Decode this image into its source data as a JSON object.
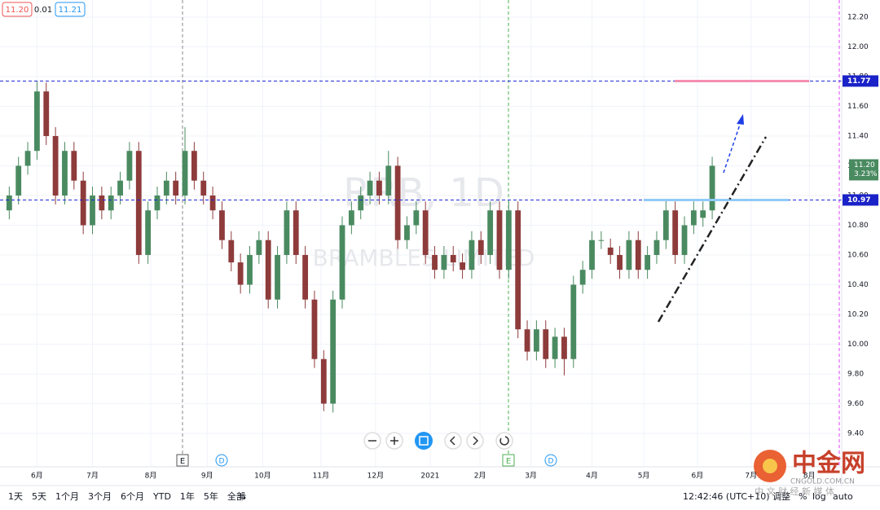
{
  "ui": {
    "header": {
      "bid": "11.20",
      "spread": "0.01",
      "ask": "11.21"
    },
    "watermark": {
      "symbol": "RRB, 1D",
      "name": "BRAMBLES LIMITED"
    },
    "events": [
      "E",
      "D",
      "E",
      "D"
    ],
    "ranges": [
      "1天",
      "5天",
      "1个月",
      "3个月",
      "6个月",
      "YTD",
      "1年",
      "5年",
      "全部"
    ],
    "time": "12:42:46 (UTC+10)",
    "options": [
      "调整",
      "%",
      "log",
      "auto"
    ],
    "logo": {
      "name": "中金网",
      "url": "CNGOLD.COM.CN",
      "slogan": "中 文 财 经 新 媒 体"
    }
  },
  "chart_data": {
    "type": "candlestick",
    "open": [
      10.9,
      11.0,
      11.2,
      11.3,
      11.7,
      11.4,
      11.0,
      11.3,
      11.1,
      10.8,
      11.0,
      10.9,
      11.0,
      11.1,
      11.3,
      10.6,
      10.9,
      11.0,
      11.1,
      11.0,
      11.3,
      11.1,
      11.0,
      10.9,
      10.7,
      10.55,
      10.4,
      10.6,
      10.7,
      10.3,
      10.6,
      10.9,
      10.6,
      10.3,
      9.9,
      9.6,
      10.3,
      10.8,
      10.9,
      11.0,
      11.1,
      11.0,
      11.2,
      10.7,
      10.8,
      10.9,
      10.6,
      10.5,
      10.6,
      10.55,
      10.5,
      10.7,
      10.6,
      10.9,
      10.5,
      10.9,
      10.1,
      9.95,
      10.1,
      9.9,
      10.05,
      9.9,
      10.4,
      10.5,
      10.7,
      10.65,
      10.6,
      10.5,
      10.7,
      10.5,
      10.6,
      10.7,
      10.9,
      10.6,
      10.8,
      10.85,
      10.9
    ],
    "high": [
      11.06,
      11.26,
      11.36,
      11.77,
      11.76,
      11.46,
      11.36,
      11.36,
      11.16,
      11.06,
      11.06,
      11.06,
      11.16,
      11.36,
      11.36,
      10.96,
      11.06,
      11.16,
      11.16,
      11.46,
      11.36,
      11.16,
      11.06,
      10.96,
      10.76,
      10.61,
      10.66,
      10.76,
      10.76,
      10.66,
      10.96,
      10.96,
      10.66,
      10.36,
      9.96,
      10.36,
      10.86,
      10.96,
      11.06,
      11.16,
      11.16,
      11.3,
      11.26,
      10.86,
      10.96,
      10.96,
      10.66,
      10.66,
      10.66,
      10.61,
      10.76,
      10.76,
      10.96,
      10.96,
      10.96,
      10.96,
      10.16,
      10.16,
      10.16,
      10.11,
      10.11,
      10.46,
      10.56,
      10.76,
      10.76,
      10.71,
      10.66,
      10.76,
      10.76,
      10.66,
      10.76,
      10.97,
      10.96,
      10.86,
      10.96,
      10.96,
      11.26
    ],
    "low": [
      10.84,
      10.94,
      11.14,
      11.24,
      11.34,
      10.94,
      10.94,
      11.04,
      10.74,
      10.74,
      10.84,
      10.84,
      10.94,
      11.04,
      10.54,
      10.54,
      10.84,
      10.94,
      10.94,
      10.94,
      11.04,
      10.94,
      10.84,
      10.64,
      10.49,
      10.34,
      10.34,
      10.54,
      10.24,
      10.24,
      10.54,
      10.54,
      10.24,
      9.84,
      9.55,
      9.54,
      10.24,
      10.74,
      10.84,
      10.94,
      10.94,
      10.94,
      10.64,
      10.64,
      10.74,
      10.54,
      10.44,
      10.44,
      10.49,
      10.44,
      10.44,
      10.54,
      10.54,
      10.44,
      10.44,
      10.04,
      9.89,
      9.89,
      9.84,
      9.84,
      9.79,
      9.84,
      10.34,
      10.44,
      10.64,
      10.54,
      10.44,
      10.44,
      10.44,
      10.44,
      10.54,
      10.64,
      10.54,
      10.54,
      10.74,
      10.79,
      10.84
    ],
    "close": [
      11.0,
      11.2,
      11.3,
      11.7,
      11.4,
      11.0,
      11.3,
      11.1,
      10.8,
      11.0,
      10.9,
      11.0,
      11.1,
      11.3,
      10.6,
      10.9,
      11.0,
      11.1,
      11.0,
      11.3,
      11.1,
      11.0,
      10.9,
      10.7,
      10.55,
      10.4,
      10.6,
      10.7,
      10.3,
      10.6,
      10.9,
      10.6,
      10.3,
      9.9,
      9.6,
      10.3,
      10.8,
      10.9,
      11.0,
      11.1,
      11.0,
      11.2,
      10.7,
      10.8,
      10.9,
      10.6,
      10.5,
      10.6,
      10.55,
      10.5,
      10.7,
      10.6,
      10.9,
      10.5,
      10.9,
      10.1,
      9.95,
      10.1,
      9.9,
      10.05,
      9.9,
      10.4,
      10.5,
      10.7,
      10.7,
      10.6,
      10.5,
      10.7,
      10.5,
      10.6,
      10.7,
      10.9,
      10.6,
      10.8,
      10.9,
      10.9,
      11.2
    ],
    "up_color": "#4a8a60",
    "down_color": "#8e3b3b",
    "xlim": [
      -1,
      90
    ],
    "xticks": [
      {
        "value": 3,
        "label": "6月"
      },
      {
        "value": 9,
        "label": "7月"
      },
      {
        "value": 15.3,
        "label": "8月"
      },
      {
        "value": 21.4,
        "label": "9月"
      },
      {
        "value": 27.4,
        "label": "10月"
      },
      {
        "value": 33.7,
        "label": "11月"
      },
      {
        "value": 39.6,
        "label": "12月"
      },
      {
        "value": 45.5,
        "label": "2021"
      },
      {
        "value": 50.9,
        "label": "2月"
      },
      {
        "value": 56.4,
        "label": "3月"
      },
      {
        "value": 63,
        "label": "4月"
      },
      {
        "value": 68.6,
        "label": "5月"
      },
      {
        "value": 74.4,
        "label": "6月"
      },
      {
        "value": 80.2,
        "label": "7月"
      },
      {
        "value": 86.5,
        "label": "8月"
      }
    ],
    "ylim": [
      9.175,
      12.315
    ],
    "yticks": [
      {
        "value": 9.4,
        "label": "9.40"
      },
      {
        "value": 9.6,
        "label": "9.60"
      },
      {
        "value": 9.8,
        "label": "9.80"
      },
      {
        "value": 10,
        "label": "10.00"
      },
      {
        "value": 10.2,
        "label": "10.20"
      },
      {
        "value": 10.4,
        "label": "10.40"
      },
      {
        "value": 10.6,
        "label": "10.60"
      },
      {
        "value": 10.8,
        "label": "10.80"
      },
      {
        "value": 11,
        "label": "11.00"
      },
      {
        "value": 11.2,
        "label": "11.20"
      },
      {
        "value": 11.4,
        "label": "11.40"
      },
      {
        "value": 11.6,
        "label": "11.60"
      },
      {
        "value": 11.8,
        "label": "11.80"
      },
      {
        "value": 12,
        "label": "12.00"
      },
      {
        "value": 12.2,
        "label": "12.20"
      }
    ],
    "hlines": [
      11.77,
      10.97
    ],
    "last_price": {
      "value": 11.2,
      "label": "11.20"
    },
    "change": {
      "value": 3.23,
      "label": "3.23%"
    },
    "grid": true
  }
}
